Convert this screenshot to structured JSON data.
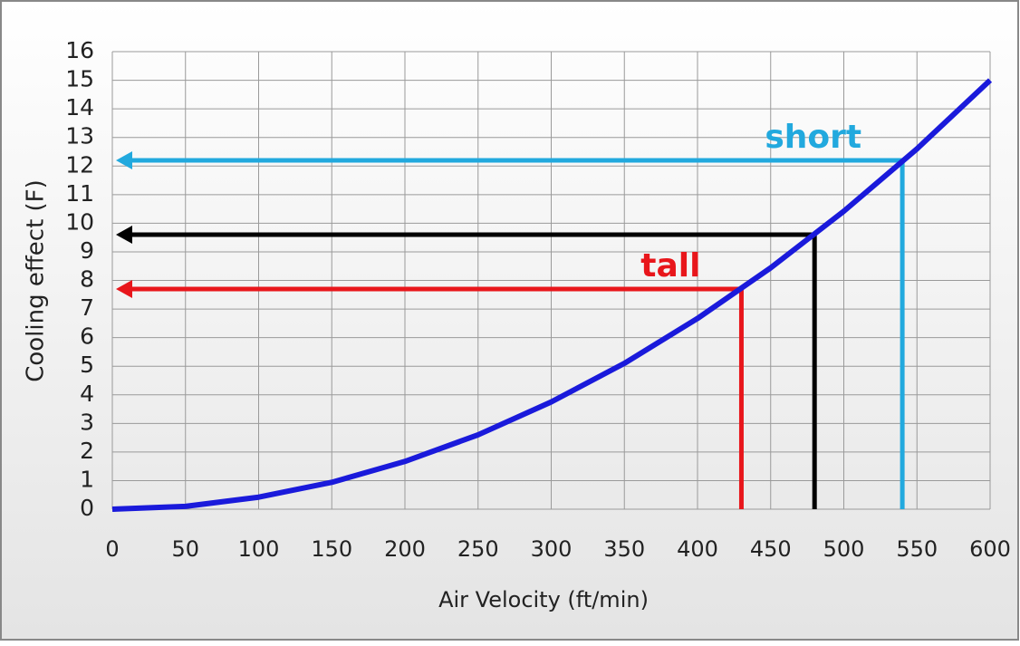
{
  "chart_data": {
    "type": "line",
    "xlabel": "Air Velocity (ft/min)",
    "ylabel": "Cooling effect (F)",
    "x": [
      0,
      50,
      100,
      150,
      200,
      250,
      300,
      350,
      400,
      450,
      500,
      550,
      600
    ],
    "series": [
      {
        "color": "#1a1adb",
        "values": [
          0,
          0.1,
          0.42,
          0.94,
          1.67,
          2.6,
          3.75,
          5.1,
          6.67,
          8.44,
          10.42,
          12.6,
          15
        ]
      }
    ],
    "xlim": [
      0,
      600
    ],
    "xticks": [
      0,
      50,
      100,
      150,
      200,
      250,
      300,
      350,
      400,
      450,
      500,
      550,
      600
    ],
    "ylim": [
      0,
      16
    ],
    "yticks": [
      0,
      1,
      2,
      3,
      4,
      5,
      6,
      7,
      8,
      9,
      10,
      11,
      12,
      13,
      14,
      15,
      16
    ],
    "grid": true,
    "annotations": [
      {
        "label": "tall",
        "x": 430,
        "y": 7.7,
        "color": "#e8161b"
      },
      {
        "x": 480,
        "y": 9.6,
        "color": "#000000"
      },
      {
        "label": "short",
        "x": 540,
        "y": 12.2,
        "color": "#22a9de"
      }
    ]
  }
}
